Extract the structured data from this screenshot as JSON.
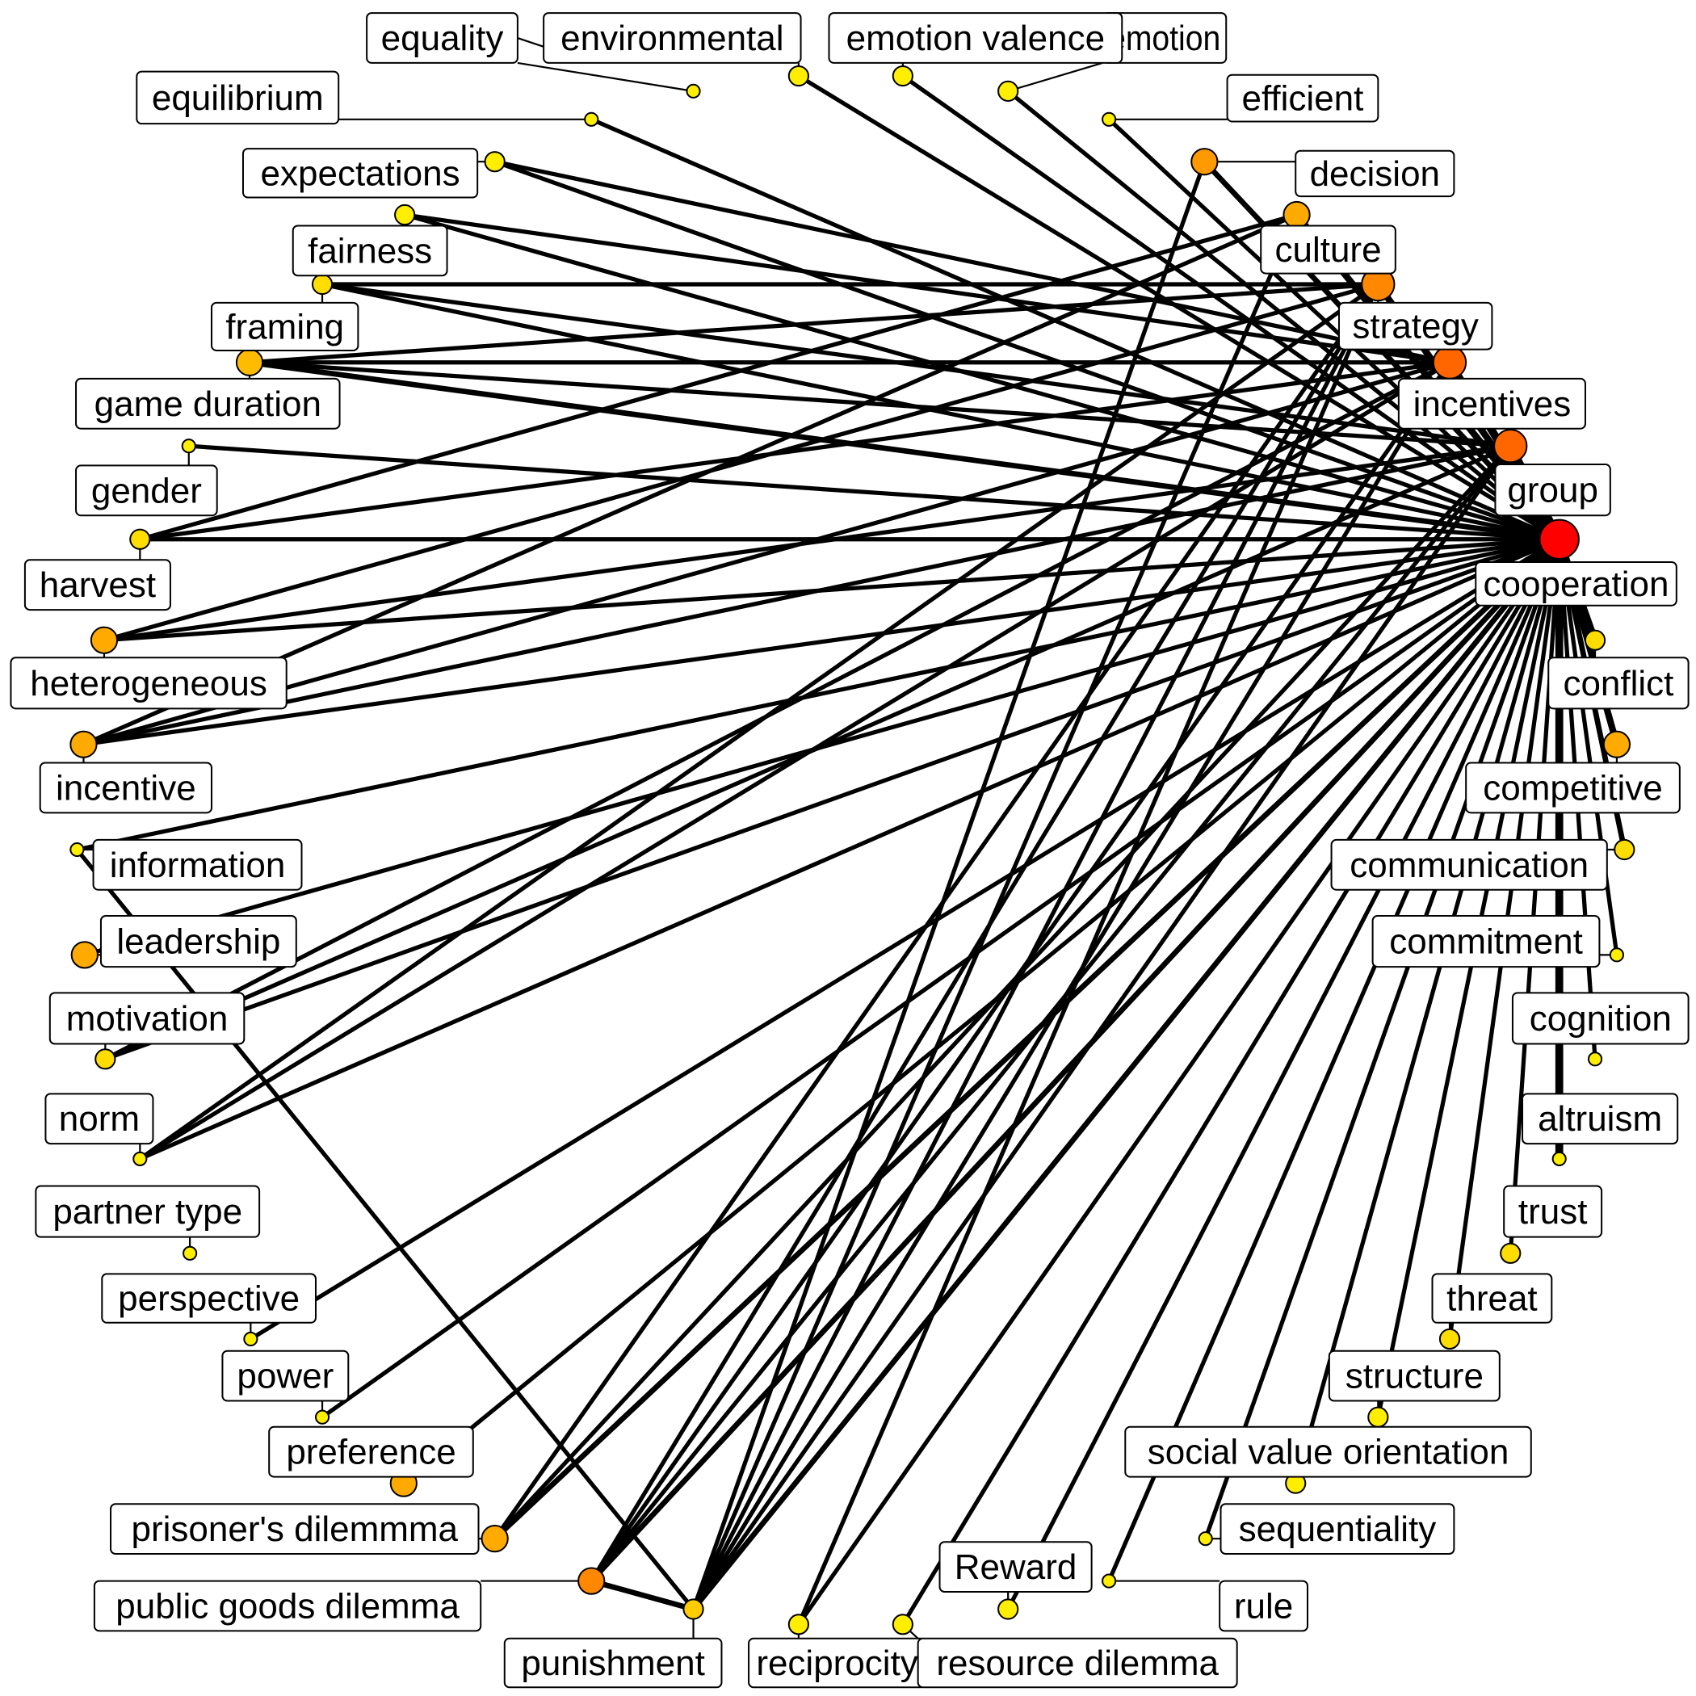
{
  "network": {
    "colors": {
      "edge": "#000000",
      "label_fill": "#ffffff",
      "label_border": "#000000",
      "node_border": "#000000"
    },
    "nodes": [
      {
        "id": "cooperation",
        "label": "cooperation",
        "color": "#ff0000",
        "degree": 4
      },
      {
        "id": "group",
        "label": "group",
        "color": "#ff6600",
        "degree": 3
      },
      {
        "id": "incentives",
        "label": "incentives",
        "color": "#ff6600",
        "degree": 3
      },
      {
        "id": "strategy",
        "label": "strategy",
        "color": "#ff8800",
        "degree": 3
      },
      {
        "id": "culture",
        "label": "culture",
        "color": "#ffaa00",
        "degree": 2
      },
      {
        "id": "decision",
        "label": "decision",
        "color": "#ff9900",
        "degree": 2
      },
      {
        "id": "efficient",
        "label": "efficient",
        "color": "#ffee00",
        "degree": 0
      },
      {
        "id": "emotion",
        "label": "emotion",
        "color": "#ffee00",
        "degree": 1
      },
      {
        "id": "emotion_valence",
        "label": "emotion valence",
        "color": "#ffee00",
        "degree": 1
      },
      {
        "id": "environmental",
        "label": "environmental",
        "color": "#ffee00",
        "degree": 1
      },
      {
        "id": "equality",
        "label": "equality",
        "color": "#ffee00",
        "degree": 0
      },
      {
        "id": "equilibrium",
        "label": "equilibrium",
        "color": "#ffee00",
        "degree": 0
      },
      {
        "id": "expectations",
        "label": "expectations",
        "color": "#ffee00",
        "degree": 1
      },
      {
        "id": "fairness",
        "label": "fairness",
        "color": "#ffee00",
        "degree": 1
      },
      {
        "id": "framing",
        "label": "framing",
        "color": "#ffdd00",
        "degree": 1
      },
      {
        "id": "game_duration",
        "label": "game duration",
        "color": "#ffbb00",
        "degree": 2
      },
      {
        "id": "gender",
        "label": "gender",
        "color": "#ffee00",
        "degree": 0
      },
      {
        "id": "harvest",
        "label": "harvest",
        "color": "#ffdd00",
        "degree": 1
      },
      {
        "id": "heterogeneous",
        "label": "heterogeneous",
        "color": "#ffaa00",
        "degree": 2
      },
      {
        "id": "incentive",
        "label": "incentive",
        "color": "#ffaa00",
        "degree": 2
      },
      {
        "id": "information",
        "label": "information",
        "color": "#ffee00",
        "degree": 0
      },
      {
        "id": "leadership",
        "label": "leadership",
        "color": "#ffaa00",
        "degree": 2
      },
      {
        "id": "motivation",
        "label": "motivation",
        "color": "#ffdd00",
        "degree": 1
      },
      {
        "id": "norm",
        "label": "norm",
        "color": "#ffee00",
        "degree": 0
      },
      {
        "id": "partner_type",
        "label": "partner type",
        "color": "#ffee00",
        "degree": 0
      },
      {
        "id": "perspective",
        "label": "perspective",
        "color": "#ffee00",
        "degree": 0
      },
      {
        "id": "power",
        "label": "power",
        "color": "#ffee00",
        "degree": 0
      },
      {
        "id": "preference",
        "label": "preference",
        "color": "#ffaa00",
        "degree": 2
      },
      {
        "id": "prisoners_dilemma",
        "label": "prisoner's dilemmma",
        "color": "#ffaa00",
        "degree": 2
      },
      {
        "id": "public_goods_dilemma",
        "label": "public goods dilemma",
        "color": "#ff8800",
        "degree": 2
      },
      {
        "id": "punishment",
        "label": "punishment",
        "color": "#ffcc00",
        "degree": 1
      },
      {
        "id": "reciprocity",
        "label": "reciprocity",
        "color": "#ffee00",
        "degree": 1
      },
      {
        "id": "resource_dilemma",
        "label": "resource dilemma",
        "color": "#ffee00",
        "degree": 1
      },
      {
        "id": "reward",
        "label": "Reward",
        "color": "#ffee00",
        "degree": 1
      },
      {
        "id": "rule",
        "label": "rule",
        "color": "#ffee00",
        "degree": 0
      },
      {
        "id": "sequentiality",
        "label": "sequentiality",
        "color": "#ffee00",
        "degree": 0
      },
      {
        "id": "social_value_orientation",
        "label": "social value orientation",
        "color": "#ffee00",
        "degree": 1
      },
      {
        "id": "structure",
        "label": "structure",
        "color": "#ffee00",
        "degree": 1
      },
      {
        "id": "threat",
        "label": "threat",
        "color": "#ffdd00",
        "degree": 1
      },
      {
        "id": "trust",
        "label": "trust",
        "color": "#ffdd00",
        "degree": 1
      },
      {
        "id": "altruism",
        "label": "altruism",
        "color": "#ffee00",
        "degree": 0
      },
      {
        "id": "cognition",
        "label": "cognition",
        "color": "#ffee00",
        "degree": 0
      },
      {
        "id": "commitment",
        "label": "commitment",
        "color": "#ffee00",
        "degree": 0
      },
      {
        "id": "communication",
        "label": "communication",
        "color": "#ffdd00",
        "degree": 1
      },
      {
        "id": "competitive",
        "label": "competitive",
        "color": "#ffaa00",
        "degree": 2
      },
      {
        "id": "conflict",
        "label": "conflict",
        "color": "#ffdd00",
        "degree": 1
      }
    ],
    "edges": [
      {
        "source": "cooperation",
        "target": "group",
        "weight": 5
      },
      {
        "source": "cooperation",
        "target": "incentives",
        "weight": 5
      },
      {
        "source": "cooperation",
        "target": "strategy",
        "weight": 4
      },
      {
        "source": "cooperation",
        "target": "culture",
        "weight": 4
      },
      {
        "source": "cooperation",
        "target": "decision",
        "weight": 3
      },
      {
        "source": "cooperation",
        "target": "conflict",
        "weight": 4
      },
      {
        "source": "cooperation",
        "target": "competitive",
        "weight": 4
      },
      {
        "source": "cooperation",
        "target": "communication",
        "weight": 3
      },
      {
        "source": "cooperation",
        "target": "commitment",
        "weight": 2
      },
      {
        "source": "cooperation",
        "target": "cognition",
        "weight": 2
      },
      {
        "source": "cooperation",
        "target": "altruism",
        "weight": 5
      },
      {
        "source": "cooperation",
        "target": "trust",
        "weight": 2
      },
      {
        "source": "cooperation",
        "target": "threat",
        "weight": 2
      },
      {
        "source": "cooperation",
        "target": "structure",
        "weight": 2
      },
      {
        "source": "cooperation",
        "target": "social_value_orientation",
        "weight": 2
      },
      {
        "source": "cooperation",
        "target": "sequentiality",
        "weight": 2
      },
      {
        "source": "cooperation",
        "target": "reward",
        "weight": 2
      },
      {
        "source": "cooperation",
        "target": "rule",
        "weight": 2
      },
      {
        "source": "cooperation",
        "target": "resource_dilemma",
        "weight": 2
      },
      {
        "source": "cooperation",
        "target": "reciprocity",
        "weight": 2
      },
      {
        "source": "cooperation",
        "target": "punishment",
        "weight": 3
      },
      {
        "source": "cooperation",
        "target": "public_goods_dilemma",
        "weight": 3
      },
      {
        "source": "cooperation",
        "target": "prisoners_dilemma",
        "weight": 3
      },
      {
        "source": "cooperation",
        "target": "preference",
        "weight": 2
      },
      {
        "source": "cooperation",
        "target": "power",
        "weight": 2
      },
      {
        "source": "cooperation",
        "target": "perspective",
        "weight": 2
      },
      {
        "source": "cooperation",
        "target": "norm",
        "weight": 2
      },
      {
        "source": "cooperation",
        "target": "motivation",
        "weight": 2
      },
      {
        "source": "cooperation",
        "target": "leadership",
        "weight": 2
      },
      {
        "source": "cooperation",
        "target": "information",
        "weight": 2
      },
      {
        "source": "cooperation",
        "target": "incentive",
        "weight": 2
      },
      {
        "source": "cooperation",
        "target": "heterogeneous",
        "weight": 2
      },
      {
        "source": "cooperation",
        "target": "harvest",
        "weight": 2
      },
      {
        "source": "cooperation",
        "target": "gender",
        "weight": 2
      },
      {
        "source": "cooperation",
        "target": "game_duration",
        "weight": 3
      },
      {
        "source": "cooperation",
        "target": "framing",
        "weight": 2
      },
      {
        "source": "cooperation",
        "target": "fairness",
        "weight": 2
      },
      {
        "source": "cooperation",
        "target": "expectations",
        "weight": 2
      },
      {
        "source": "cooperation",
        "target": "environmental",
        "weight": 2
      },
      {
        "source": "cooperation",
        "target": "emotion_valence",
        "weight": 2
      },
      {
        "source": "cooperation",
        "target": "emotion",
        "weight": 2
      },
      {
        "source": "cooperation",
        "target": "efficient",
        "weight": 2
      },
      {
        "source": "cooperation",
        "target": "equilibrium",
        "weight": 2
      },
      {
        "source": "group",
        "target": "game_duration",
        "weight": 2
      },
      {
        "source": "group",
        "target": "framing",
        "weight": 2
      },
      {
        "source": "group",
        "target": "heterogeneous",
        "weight": 2
      },
      {
        "source": "group",
        "target": "incentive",
        "weight": 2
      },
      {
        "source": "group",
        "target": "motivation",
        "weight": 2
      },
      {
        "source": "group",
        "target": "punishment",
        "weight": 2
      },
      {
        "source": "group",
        "target": "public_goods_dilemma",
        "weight": 2
      },
      {
        "source": "group",
        "target": "prisoners_dilemma",
        "weight": 2
      },
      {
        "source": "incentives",
        "target": "game_duration",
        "weight": 2
      },
      {
        "source": "incentives",
        "target": "harvest",
        "weight": 2
      },
      {
        "source": "incentives",
        "target": "incentive",
        "weight": 2
      },
      {
        "source": "incentives",
        "target": "motivation",
        "weight": 2
      },
      {
        "source": "incentives",
        "target": "norm",
        "weight": 2
      },
      {
        "source": "incentives",
        "target": "punishment",
        "weight": 2
      },
      {
        "source": "incentives",
        "target": "public_goods_dilemma",
        "weight": 2
      },
      {
        "source": "incentives",
        "target": "fairness",
        "weight": 2
      },
      {
        "source": "incentives",
        "target": "expectations",
        "weight": 2
      },
      {
        "source": "strategy",
        "target": "game_duration",
        "weight": 2
      },
      {
        "source": "strategy",
        "target": "framing",
        "weight": 2
      },
      {
        "source": "strategy",
        "target": "heterogeneous",
        "weight": 2
      },
      {
        "source": "strategy",
        "target": "norm",
        "weight": 2
      },
      {
        "source": "strategy",
        "target": "punishment",
        "weight": 2
      },
      {
        "source": "strategy",
        "target": "prisoners_dilemma",
        "weight": 2
      },
      {
        "source": "strategy",
        "target": "public_goods_dilemma",
        "weight": 2
      },
      {
        "source": "strategy",
        "target": "reciprocity",
        "weight": 2
      },
      {
        "source": "culture",
        "target": "harvest",
        "weight": 2
      },
      {
        "source": "culture",
        "target": "incentive",
        "weight": 2
      },
      {
        "source": "culture",
        "target": "punishment",
        "weight": 2
      },
      {
        "source": "decision",
        "target": "punishment",
        "weight": 2
      },
      {
        "source": "punishment",
        "target": "public_goods_dilemma",
        "weight": 3
      },
      {
        "source": "punishment",
        "target": "information",
        "weight": 2
      }
    ],
    "leader_only": [
      {
        "source": "equality",
        "target": "environmental"
      }
    ]
  }
}
